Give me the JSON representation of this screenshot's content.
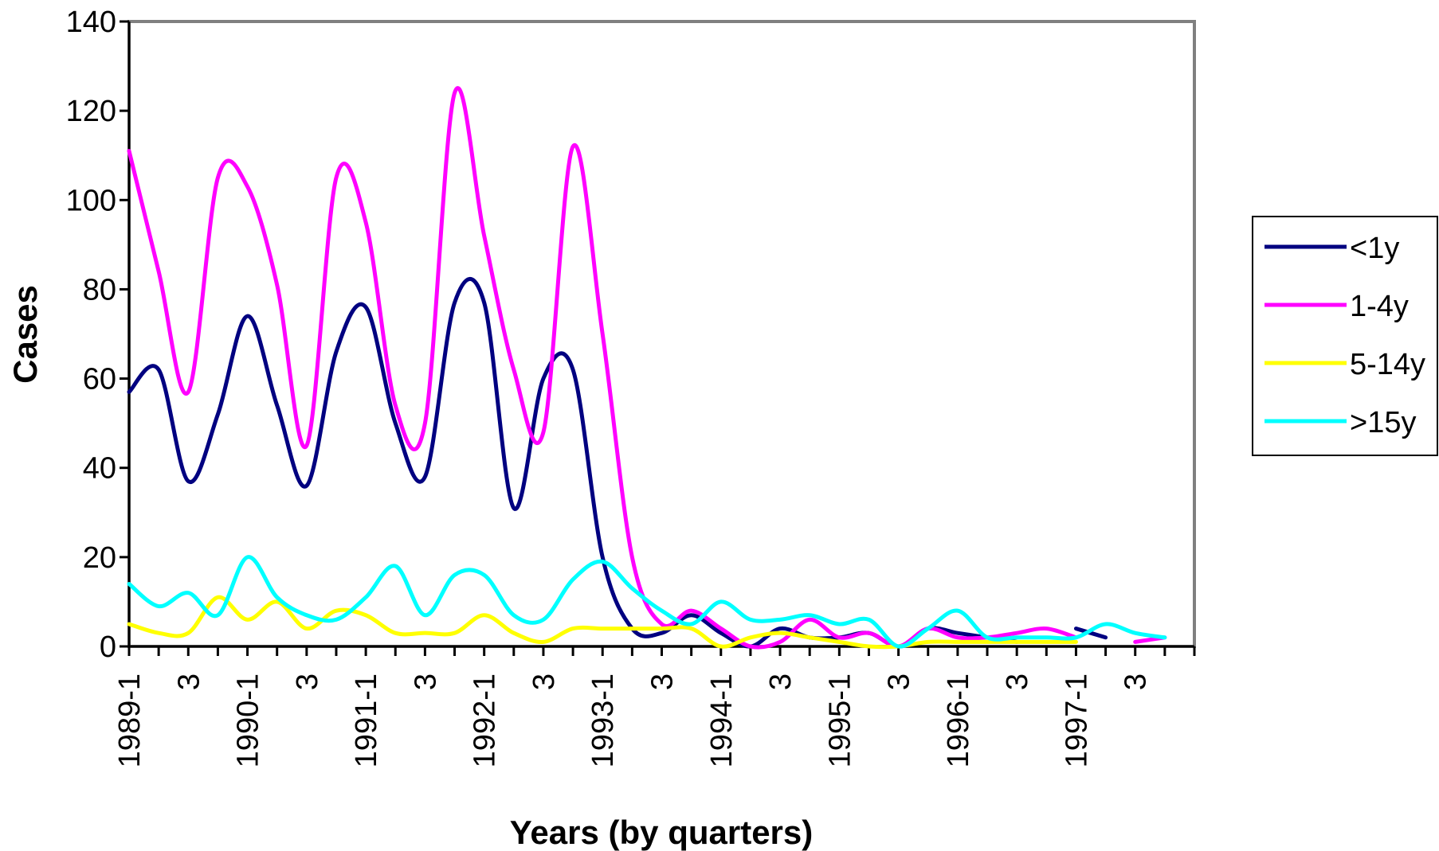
{
  "chart_data": {
    "type": "line",
    "title": "",
    "xlabel": "Years (by quarters)",
    "ylabel": "Cases",
    "ylim": [
      0,
      140
    ],
    "yticks": [
      0,
      20,
      40,
      60,
      80,
      100,
      120,
      140
    ],
    "x_tick_labels": [
      "1989-1",
      "3",
      "1990-1",
      "3",
      "1991-1",
      "3",
      "1992-1",
      "3",
      "1993-1",
      "3",
      "1994-1",
      "3",
      "1995-1",
      "3",
      "1996-1",
      "3",
      "1997-1",
      "3"
    ],
    "x_tick_positions": [
      0,
      2,
      4,
      6,
      8,
      10,
      12,
      14,
      16,
      18,
      20,
      22,
      24,
      26,
      28,
      30,
      32,
      34
    ],
    "x_periods": 36,
    "grid": false,
    "legend_position": "right",
    "series": [
      {
        "name": "<1y",
        "color": "#000080",
        "x": [
          0,
          1,
          2,
          3,
          4,
          5,
          6,
          7,
          8,
          9,
          10,
          11,
          12,
          13,
          14,
          15,
          16,
          17,
          18,
          19,
          20,
          21,
          22,
          23,
          24,
          25,
          26,
          27,
          28,
          29,
          30,
          31,
          32,
          33
        ],
        "values": [
          57,
          62,
          37,
          52,
          74,
          54,
          36,
          66,
          76,
          50,
          38,
          77,
          77,
          31,
          60,
          62,
          20,
          4,
          3,
          7,
          3,
          0,
          4,
          2,
          2,
          3,
          0,
          4,
          3,
          2,
          1,
          null,
          4,
          2
        ]
      },
      {
        "name": "1-4y",
        "color": "#ff00ff",
        "x": [
          0,
          1,
          2,
          3,
          4,
          5,
          6,
          7,
          8,
          9,
          10,
          11,
          12,
          13,
          14,
          15,
          16,
          17,
          18,
          19,
          20,
          21,
          22,
          23,
          24,
          25,
          26,
          27,
          28,
          29,
          30,
          31,
          32,
          33,
          34,
          35
        ],
        "values": [
          111,
          84,
          57,
          105,
          103,
          81,
          45,
          105,
          95,
          54,
          50,
          124,
          92,
          62,
          48,
          112,
          70,
          20,
          5,
          8,
          4,
          0,
          1,
          6,
          2,
          3,
          0,
          4,
          2,
          2,
          3,
          4,
          2,
          null,
          1,
          2
        ]
      },
      {
        "name": "5-14y",
        "color": "#ffff00",
        "x": [
          0,
          1,
          2,
          3,
          4,
          5,
          6,
          7,
          8,
          9,
          10,
          11,
          12,
          13,
          14,
          15,
          16,
          17,
          18,
          19,
          20,
          21,
          22,
          23,
          24,
          25,
          26,
          27,
          28,
          29,
          30,
          31,
          32
        ],
        "values": [
          5,
          3,
          3,
          11,
          6,
          10,
          4,
          8,
          7,
          3,
          3,
          3,
          7,
          3,
          1,
          4,
          4,
          4,
          4,
          4,
          0,
          2,
          3,
          2,
          1,
          0,
          0,
          1,
          1,
          1,
          1,
          1,
          1
        ]
      },
      {
        "name": ">15y",
        "color": "#00ffff",
        "x": [
          0,
          1,
          2,
          3,
          4,
          5,
          6,
          7,
          8,
          9,
          10,
          11,
          12,
          13,
          14,
          15,
          16,
          17,
          18,
          19,
          20,
          21,
          22,
          23,
          24,
          25,
          26,
          27,
          28,
          29,
          30,
          31,
          32,
          33,
          34,
          35
        ],
        "values": [
          14,
          9,
          12,
          7,
          20,
          11,
          7,
          6,
          11,
          18,
          7,
          16,
          16,
          7,
          6,
          15,
          19,
          13,
          8,
          5,
          10,
          6,
          6,
          7,
          5,
          6,
          0,
          4,
          8,
          2,
          2,
          2,
          2,
          5,
          3,
          2
        ]
      }
    ]
  }
}
